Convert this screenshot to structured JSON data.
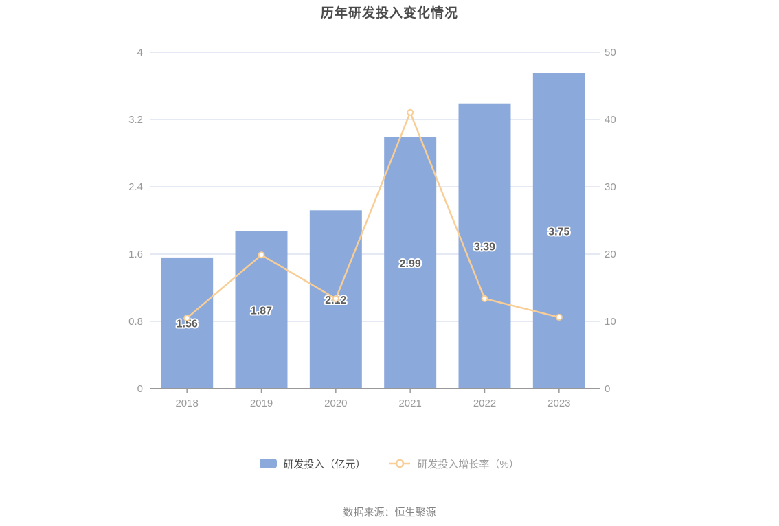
{
  "source": "数据来源：恒生聚源",
  "chart_data": {
    "type": "combo-bar-line",
    "title": "历年研发投入变化情况",
    "categories": [
      "2018",
      "2019",
      "2020",
      "2021",
      "2022",
      "2023"
    ],
    "series": [
      {
        "name": "研发投入（亿元）",
        "type": "bar",
        "axis": "left",
        "values": [
          1.56,
          1.87,
          2.12,
          2.99,
          3.39,
          3.75
        ],
        "labels": [
          "1.56",
          "1.87",
          "2.12",
          "2.99",
          "3.39",
          "3.75"
        ],
        "color": "#8CA9DB"
      },
      {
        "name": "研发投入增长率（%）",
        "type": "line",
        "axis": "right",
        "values": [
          10.5,
          19.87,
          13.37,
          41.04,
          13.38,
          10.62
        ],
        "color": "#F8CE96"
      }
    ],
    "axes": {
      "left": {
        "min": 0,
        "max": 4,
        "ticks": [
          0,
          0.8,
          1.6,
          2.4,
          3.2,
          4
        ],
        "tick_labels": [
          "0",
          "0.8",
          "1.6",
          "2.4",
          "3.2",
          "4"
        ]
      },
      "right": {
        "min": 0,
        "max": 50,
        "ticks": [
          0,
          10,
          20,
          30,
          40,
          50
        ],
        "tick_labels": [
          "0",
          "10",
          "20",
          "30",
          "40",
          "50"
        ]
      }
    },
    "grid": true,
    "legend_position": "bottom",
    "colors": {
      "bar": "#8CA9DB",
      "line": "#F8CE96",
      "marker_fill": "#FFFFFF",
      "grid_line": "#E5E9F4",
      "axis_line": "#999999",
      "axis_label": "#999999",
      "title_text": "#4A4A4A",
      "bar_label_text": "#5E5E5E",
      "legend_bar_text": "#4D4D4D",
      "legend_line_text": "#9E9E9E",
      "source_text": "#848484"
    }
  }
}
